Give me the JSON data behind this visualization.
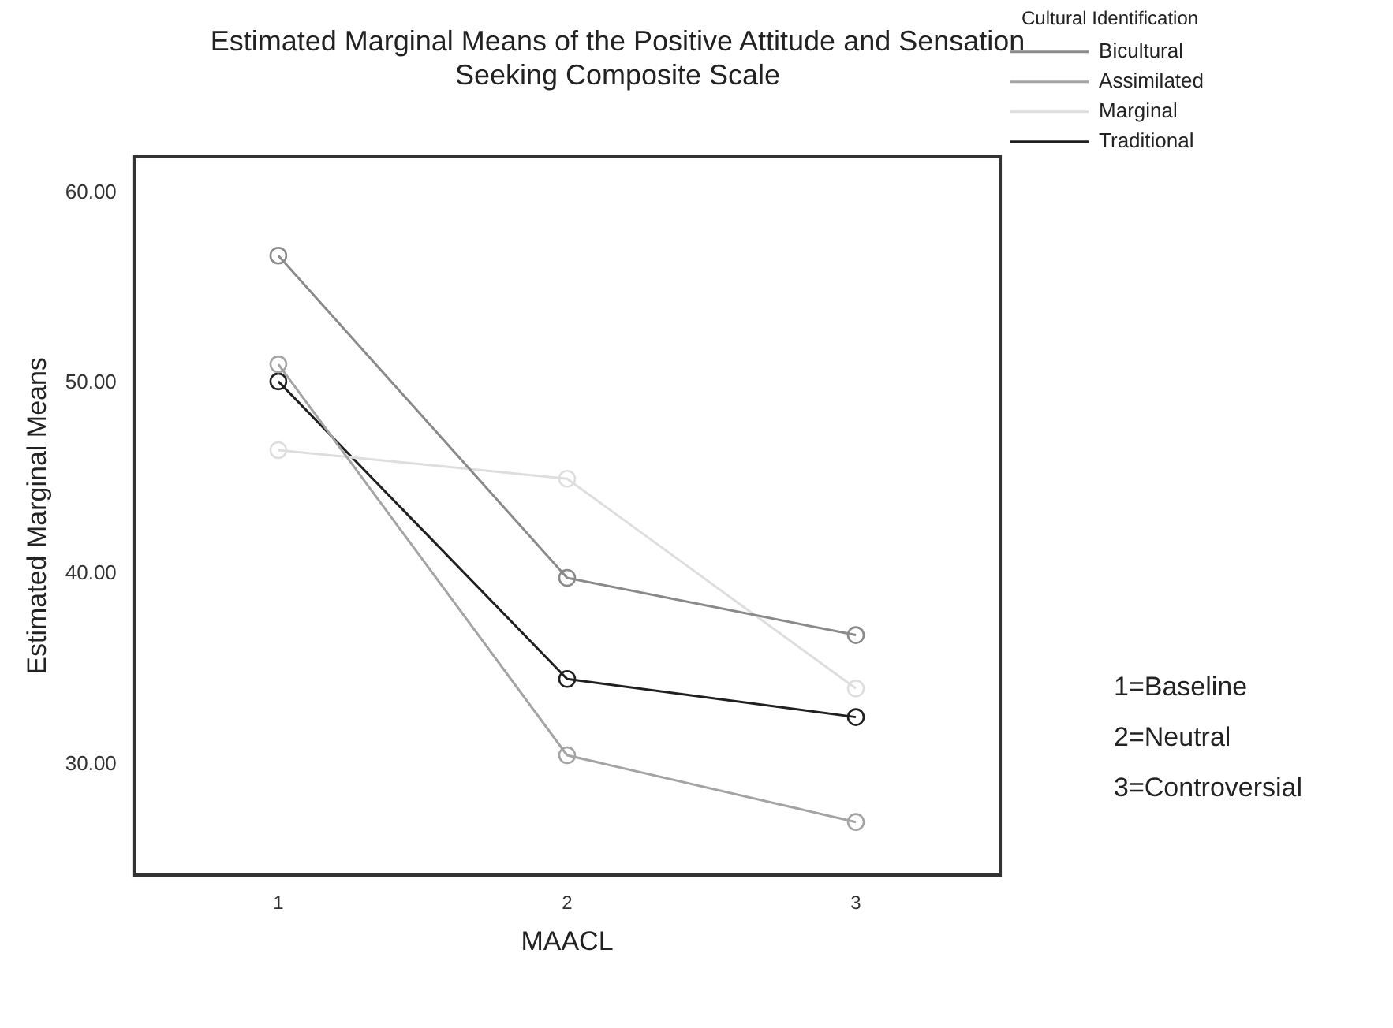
{
  "chart_data": {
    "type": "line",
    "title": "Estimated Marginal Means of the Positive Attitude and Sensation Seeking Composite Scale",
    "xlabel": "MAACL",
    "ylabel": "Estimated Marginal Means",
    "legend_title": "Cultural Identification",
    "legend": "top right",
    "marker": "circle",
    "categories": [
      "1",
      "2",
      "3"
    ],
    "ylim": [
      24.2,
      61.9
    ],
    "yticks": [
      {
        "value": 30,
        "label": "30.00"
      },
      {
        "value": 40,
        "label": "40.00"
      },
      {
        "value": 50,
        "label": "50.00"
      },
      {
        "value": 60,
        "label": "60.00"
      }
    ],
    "series": [
      {
        "name": "Bicultural",
        "color": "#8a8a8a",
        "values": [
          56.7,
          39.8,
          36.8
        ]
      },
      {
        "name": "Assimilated",
        "color": "#a4a4a4",
        "values": [
          51.0,
          30.5,
          27.0
        ]
      },
      {
        "name": "Marginal",
        "color": "#dedede",
        "values": [
          46.5,
          45.0,
          34.0
        ]
      },
      {
        "name": "Traditional",
        "color": "#202020",
        "values": [
          50.1,
          34.5,
          32.5
        ]
      }
    ],
    "annotations": [
      "1=Baseline",
      "2=Neutral",
      "3=Controversial"
    ]
  }
}
